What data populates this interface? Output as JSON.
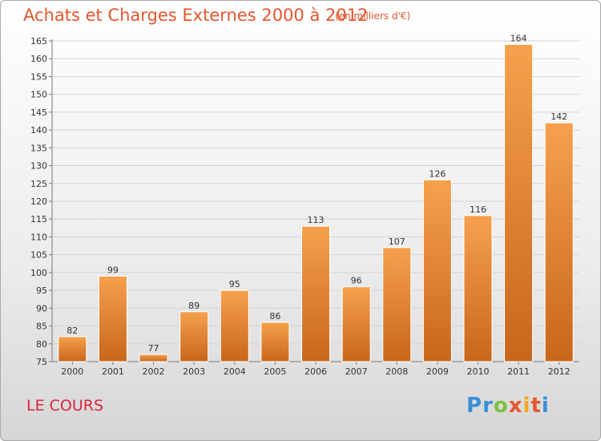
{
  "header": {
    "title": "Achats et Charges Externes 2000 à 2012",
    "subtitle": "(en milliers d'€)"
  },
  "footer": {
    "commune": "LE COURS",
    "logo_letters": [
      "P",
      "r",
      "o",
      "x",
      "i",
      "t",
      "i"
    ],
    "logo_colors": [
      "#3a8fd6",
      "#3a8fd6",
      "#7cc142",
      "#e4572e",
      "#f4a81d",
      "#e4572e",
      "#3a8fd6"
    ]
  },
  "chart_data": {
    "type": "bar",
    "title": "Achats et Charges Externes 2000 à 2012",
    "subtitle": "(en milliers d'€)",
    "categories": [
      "2000",
      "2001",
      "2002",
      "2003",
      "2004",
      "2005",
      "2006",
      "2007",
      "2008",
      "2009",
      "2010",
      "2011",
      "2012"
    ],
    "values": [
      82,
      99,
      77,
      89,
      95,
      86,
      113,
      96,
      107,
      126,
      116,
      164,
      142
    ],
    "ylim": [
      75,
      165
    ],
    "yticks": [
      75,
      80,
      85,
      90,
      95,
      100,
      105,
      110,
      115,
      120,
      125,
      130,
      135,
      140,
      145,
      150,
      155,
      160,
      165
    ],
    "grid": true,
    "bar_color_top": "#f6a14d",
    "bar_color_bottom": "#c8661b"
  }
}
